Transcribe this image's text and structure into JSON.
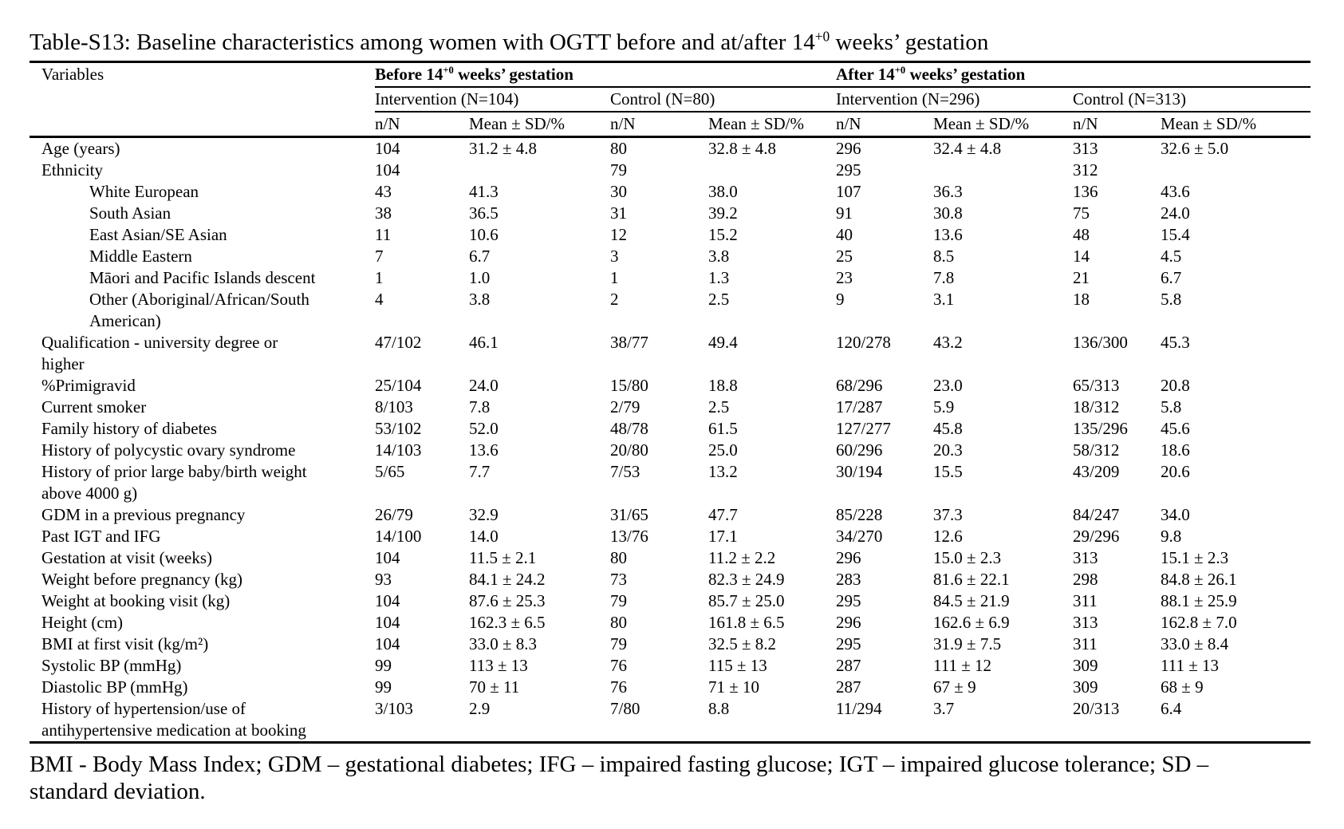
{
  "title": {
    "pre": "Table-S13: Baseline characteristics among women with OGTT before and at/after 14",
    "sup": "+0",
    "post": " weeks’ gestation"
  },
  "table": {
    "variables_header": "Variables",
    "groups": [
      {
        "pre": "Before 14",
        "sup": "+0",
        "post": " weeks’ gestation"
      },
      {
        "pre": "After 14",
        "sup": "+0",
        "post": " weeks’ gestation"
      }
    ],
    "subgroups": [
      "Intervention (N=104)",
      "Control (N=80)",
      "Intervention (N=296)",
      "Control (N=313)"
    ],
    "col_headers": [
      "n/N",
      "Mean ± SD/%",
      "n/N",
      "Mean ± SD/%",
      "n/N",
      "Mean ± SD/%",
      "n/N",
      "Mean ± SD/%"
    ],
    "rows": [
      {
        "lines": [
          "Age (years)"
        ],
        "indent": false,
        "values": [
          "104",
          "31.2 ± 4.8",
          "80",
          "32.8 ± 4.8",
          "296",
          "32.4 ± 4.8",
          "313",
          "32.6 ± 5.0"
        ]
      },
      {
        "lines": [
          "Ethnicity"
        ],
        "indent": false,
        "values": [
          "104",
          "",
          "79",
          "",
          "295",
          "",
          "312",
          ""
        ]
      },
      {
        "lines": [
          "White European"
        ],
        "indent": true,
        "values": [
          "43",
          "41.3",
          "30",
          "38.0",
          "107",
          "36.3",
          "136",
          "43.6"
        ]
      },
      {
        "lines": [
          "South Asian"
        ],
        "indent": true,
        "values": [
          "38",
          "36.5",
          "31",
          "39.2",
          "91",
          "30.8",
          "75",
          "24.0"
        ]
      },
      {
        "lines": [
          "East Asian/SE Asian"
        ],
        "indent": true,
        "values": [
          "11",
          "10.6",
          "12",
          "15.2",
          "40",
          "13.6",
          "48",
          "15.4"
        ]
      },
      {
        "lines": [
          "Middle Eastern"
        ],
        "indent": true,
        "values": [
          "7",
          "6.7",
          "3",
          "3.8",
          "25",
          "8.5",
          "14",
          "4.5"
        ]
      },
      {
        "lines": [
          "Māori and Pacific Islands descent"
        ],
        "indent": true,
        "values": [
          "1",
          "1.0",
          "1",
          "1.3",
          "23",
          "7.8",
          "21",
          "6.7"
        ]
      },
      {
        "lines": [
          "Other (Aboriginal/African/South",
          "American)"
        ],
        "indent": true,
        "values": [
          "4",
          "3.8",
          "2",
          "2.5",
          "9",
          "3.1",
          "18",
          "5.8"
        ]
      },
      {
        "lines": [
          "Qualification - university degree or",
          "higher"
        ],
        "indent": false,
        "values": [
          "47/102",
          "46.1",
          "38/77",
          "49.4",
          "120/278",
          "43.2",
          "136/300",
          "45.3"
        ]
      },
      {
        "lines": [
          "%Primigravid"
        ],
        "indent": false,
        "values": [
          "25/104",
          "24.0",
          "15/80",
          "18.8",
          "68/296",
          "23.0",
          "65/313",
          "20.8"
        ]
      },
      {
        "lines": [
          "Current smoker"
        ],
        "indent": false,
        "values": [
          "8/103",
          "7.8",
          "2/79",
          "2.5",
          "17/287",
          "5.9",
          "18/312",
          "5.8"
        ]
      },
      {
        "lines": [
          "Family history of diabetes"
        ],
        "indent": false,
        "values": [
          "53/102",
          "52.0",
          "48/78",
          "61.5",
          "127/277",
          "45.8",
          "135/296",
          "45.6"
        ]
      },
      {
        "lines": [
          "History of polycystic ovary syndrome"
        ],
        "indent": false,
        "values": [
          "14/103",
          "13.6",
          "20/80",
          "25.0",
          "60/296",
          "20.3",
          "58/312",
          "18.6"
        ]
      },
      {
        "lines": [
          "History of prior large baby/birth weight",
          "above 4000 g)"
        ],
        "indent": false,
        "values": [
          "5/65",
          "7.7",
          "7/53",
          "13.2",
          "30/194",
          "15.5",
          "43/209",
          "20.6"
        ]
      },
      {
        "lines": [
          "GDM in a previous pregnancy"
        ],
        "indent": false,
        "values": [
          "26/79",
          "32.9",
          "31/65",
          "47.7",
          "85/228",
          "37.3",
          "84/247",
          "34.0"
        ]
      },
      {
        "lines": [
          "Past IGT and IFG"
        ],
        "indent": false,
        "values": [
          "14/100",
          "14.0",
          "13/76",
          "17.1",
          "34/270",
          "12.6",
          "29/296",
          "9.8"
        ]
      },
      {
        "lines": [
          "Gestation at visit (weeks)"
        ],
        "indent": false,
        "values": [
          "104",
          "11.5 ± 2.1",
          "80",
          "11.2 ± 2.2",
          "296",
          "15.0 ± 2.3",
          "313",
          "15.1 ± 2.3"
        ]
      },
      {
        "lines": [
          "Weight before pregnancy (kg)"
        ],
        "indent": false,
        "values": [
          "93",
          "84.1 ± 24.2",
          "73",
          "82.3 ± 24.9",
          "283",
          "81.6 ± 22.1",
          "298",
          "84.8 ± 26.1"
        ]
      },
      {
        "lines": [
          "Weight at booking visit (kg)"
        ],
        "indent": false,
        "values": [
          "104",
          "87.6 ± 25.3",
          "79",
          "85.7 ± 25.0",
          "295",
          "84.5 ± 21.9",
          "311",
          "88.1 ± 25.9"
        ]
      },
      {
        "lines": [
          "Height (cm)"
        ],
        "indent": false,
        "values": [
          "104",
          "162.3 ± 6.5",
          "80",
          "161.8 ± 6.5",
          "296",
          "162.6 ± 6.9",
          "313",
          "162.8 ± 7.0"
        ]
      },
      {
        "lines": [
          "BMI at first visit (kg/m²)"
        ],
        "indent": false,
        "values": [
          "104",
          "33.0 ± 8.3",
          "79",
          "32.5 ± 8.2",
          "295",
          "31.9 ± 7.5",
          "311",
          "33.0 ± 8.4"
        ]
      },
      {
        "lines": [
          "Systolic BP (mmHg)"
        ],
        "indent": false,
        "values": [
          "99",
          "113 ± 13",
          "76",
          "115 ± 13",
          "287",
          "111 ± 12",
          "309",
          "111 ± 13"
        ]
      },
      {
        "lines": [
          "Diastolic BP (mmHg)"
        ],
        "indent": false,
        "values": [
          "99",
          "70 ± 11",
          "76",
          "71 ± 10",
          "287",
          "67 ± 9",
          "309",
          "68 ± 9"
        ]
      },
      {
        "lines": [
          "History of hypertension/use of",
          "antihypertensive medication at booking"
        ],
        "indent": false,
        "values": [
          "3/103",
          "2.9",
          "7/80",
          "8.8",
          "11/294",
          "3.7",
          "20/313",
          "6.4"
        ]
      }
    ]
  },
  "footnote": "BMI - Body Mass Index; GDM – gestational diabetes; IFG – impaired fasting glucose; IGT – impaired glucose tolerance; SD – standard deviation."
}
